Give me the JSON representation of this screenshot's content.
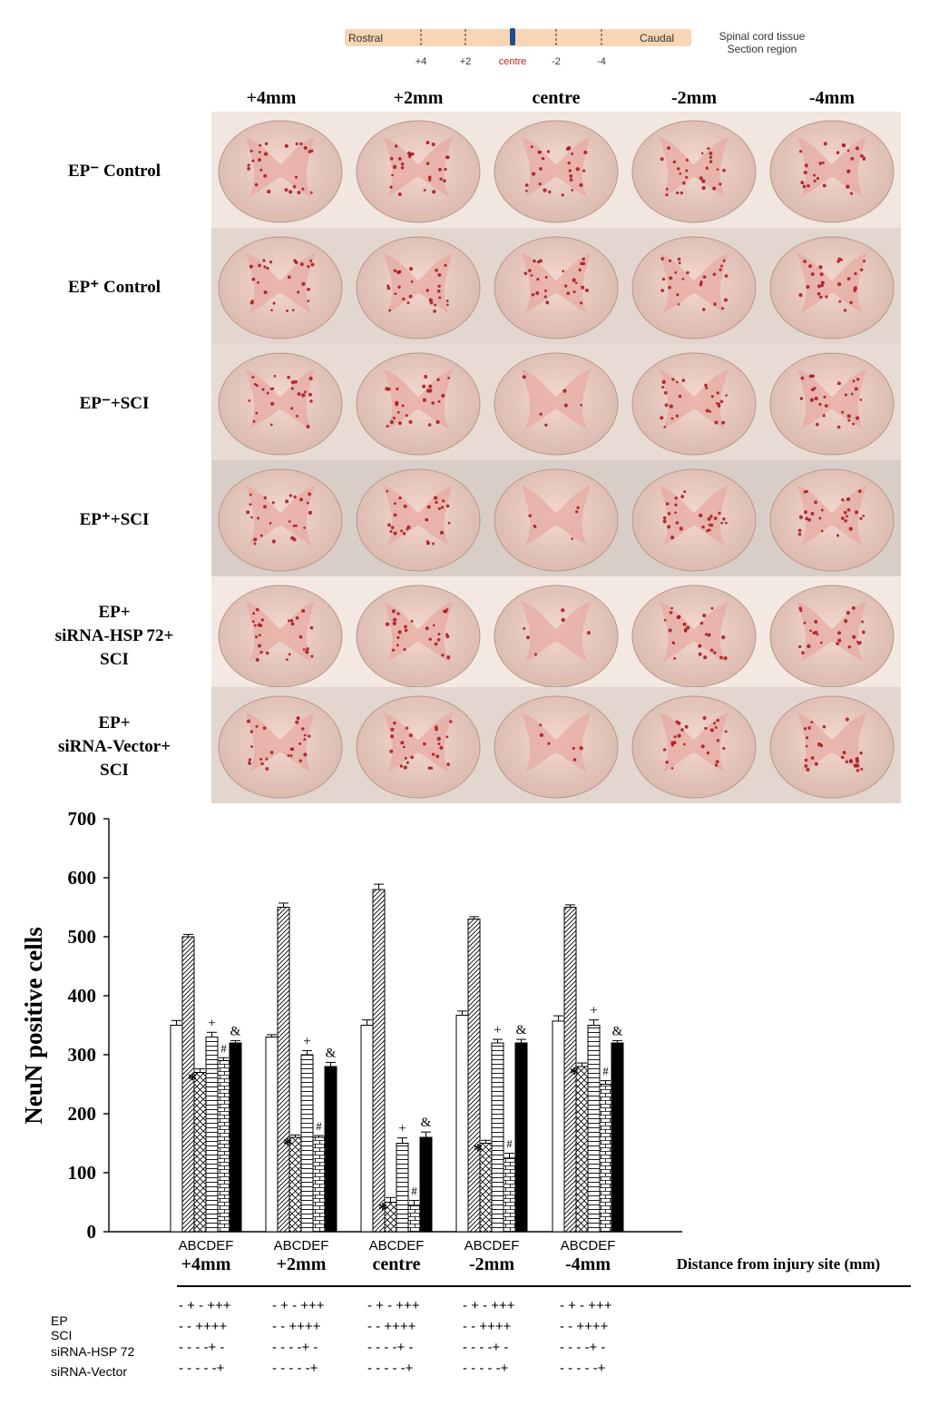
{
  "section_diagram": {
    "left_label": "Rostral",
    "right_label": "Caudal",
    "ticks": [
      "+4",
      "+2",
      "centre",
      "-2",
      "-4"
    ],
    "legend_line1": "Spinal cord tissue",
    "legend_line2": "Section region",
    "colors": {
      "bar": "#f8d5b4",
      "centre_marker": "#1f4e8c",
      "centre_text": "#d81b1b"
    }
  },
  "micrograph_panel": {
    "columns": [
      "+4mm",
      "+2mm",
      "centre",
      "-2mm",
      "-4mm"
    ],
    "rows": [
      {
        "lines": [
          "EP⁻ Control"
        ]
      },
      {
        "lines": [
          "EP⁺ Control"
        ]
      },
      {
        "lines": [
          "EP⁻+SCI"
        ]
      },
      {
        "lines": [
          "EP⁺+SCI"
        ]
      },
      {
        "lines": [
          "EP+",
          "siRNA-HSP 72+",
          "SCI"
        ]
      },
      {
        "lines": [
          "EP+",
          "siRNA-Vector+",
          "SCI"
        ]
      }
    ]
  },
  "chart_data": {
    "type": "bar",
    "ylabel": "NeuN positive cells",
    "xlabel": "Distance from injury site (mm)",
    "ylim": [
      0,
      700
    ],
    "yticks": [
      "0",
      "100",
      "200",
      "300",
      "400",
      "500",
      "600",
      "700"
    ],
    "categories": [
      "+4mm",
      "+2mm",
      "centre",
      "-2mm",
      "-4mm"
    ],
    "bar_letters": "ABCDEF",
    "series": [
      {
        "letter": "A",
        "pattern": "white",
        "values": [
          350,
          330,
          350,
          367,
          357
        ],
        "errors": [
          8,
          4,
          9,
          7,
          9
        ]
      },
      {
        "letter": "B",
        "pattern": "diagonal",
        "values": [
          500,
          550,
          580,
          530,
          550
        ],
        "errors": [
          4,
          7,
          9,
          4,
          4
        ]
      },
      {
        "letter": "C",
        "pattern": "crosshatch",
        "values": [
          270,
          160,
          50,
          150,
          280
        ],
        "errors": [
          6,
          4,
          8,
          5,
          6
        ]
      },
      {
        "letter": "D",
        "pattern": "horizontal",
        "values": [
          330,
          300,
          150,
          320,
          350
        ],
        "errors": [
          8,
          7,
          9,
          6,
          9
        ]
      },
      {
        "letter": "E",
        "pattern": "brick",
        "values": [
          290,
          160,
          45,
          125,
          250
        ],
        "errors": [
          5,
          3,
          8,
          8,
          6
        ]
      },
      {
        "letter": "F",
        "pattern": "black",
        "values": [
          320,
          280,
          160,
          320,
          320
        ],
        "errors": [
          4,
          7,
          9,
          6,
          4
        ]
      }
    ],
    "markers": [
      {
        "bar": 2,
        "symbol": "*"
      },
      {
        "bar": 3,
        "symbol": "+"
      },
      {
        "bar": 4,
        "symbol": "#"
      },
      {
        "bar": 5,
        "symbol": "&"
      }
    ],
    "treatment_table": {
      "rows": [
        {
          "label": "EP",
          "cells": [
            "- + - +++",
            "- + - +++",
            "- + - +++",
            "- + - +++",
            "- + - +++"
          ]
        },
        {
          "label": "SCI",
          "cells": [
            "- - ++++",
            "- - ++++",
            "- - ++++",
            "- - ++++",
            "- - ++++"
          ]
        },
        {
          "label": "siRNA-HSP 72",
          "cells": [
            "- - - -+ -",
            "- - - -+ -",
            "- - - -+ -",
            "- - - -+ -",
            "- - - -+ -"
          ]
        },
        {
          "label": "siRNA-Vector",
          "cells": [
            "- - - - -+",
            "- - - - -+",
            "- - - - -+",
            "- - - - -+",
            "- - - - -+"
          ]
        }
      ]
    }
  }
}
